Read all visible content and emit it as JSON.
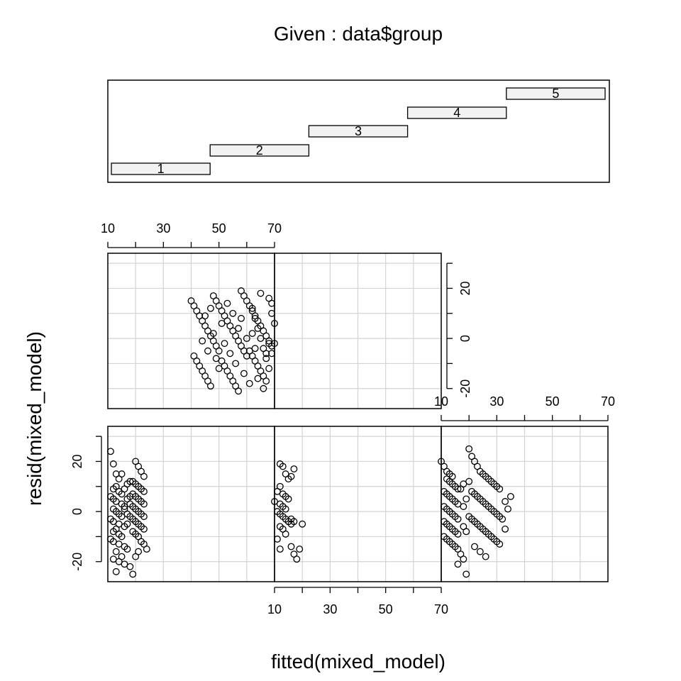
{
  "chart_data": {
    "type": "scatter",
    "title": "Given : data$group",
    "xlabel": "fitted(mixed_model)",
    "ylabel": "resid(mixed_model)",
    "x_ticks": [
      "10",
      "30",
      "50",
      "70"
    ],
    "y_ticks": [
      "-20",
      "0",
      "20"
    ],
    "xlim": [
      10,
      70
    ],
    "ylim": [
      -28,
      34
    ],
    "grid": true,
    "given": {
      "variable": "data$group",
      "levels": [
        "1",
        "2",
        "3",
        "4",
        "5"
      ],
      "range": [
        0.5,
        5.5
      ]
    },
    "panels": [
      {
        "group": "1",
        "points": [
          [
            11,
            24
          ],
          [
            12,
            19
          ],
          [
            13,
            15
          ],
          [
            14,
            13
          ],
          [
            13,
            10
          ],
          [
            12,
            9
          ],
          [
            14,
            8
          ],
          [
            15,
            7
          ],
          [
            11,
            6
          ],
          [
            12,
            5
          ],
          [
            13,
            4
          ],
          [
            15,
            3
          ],
          [
            16,
            2
          ],
          [
            12,
            1
          ],
          [
            13,
            0
          ],
          [
            14,
            -1
          ],
          [
            15,
            -2
          ],
          [
            11,
            -3
          ],
          [
            12,
            -4
          ],
          [
            14,
            -5
          ],
          [
            16,
            -6
          ],
          [
            13,
            -7
          ],
          [
            12,
            -8
          ],
          [
            14,
            -9
          ],
          [
            15,
            -10
          ],
          [
            11,
            -11
          ],
          [
            12,
            -12
          ],
          [
            14,
            -13
          ],
          [
            16,
            -14
          ],
          [
            17,
            -15
          ],
          [
            13,
            -16
          ],
          [
            15,
            -18
          ],
          [
            12,
            -19
          ],
          [
            14,
            -20
          ],
          [
            16,
            -21
          ],
          [
            18,
            -22
          ],
          [
            13,
            -24
          ],
          [
            19,
            -25
          ],
          [
            20,
            20
          ],
          [
            21,
            18
          ],
          [
            22,
            16
          ],
          [
            23,
            14
          ],
          [
            19,
            12
          ],
          [
            20,
            11
          ],
          [
            21,
            10
          ],
          [
            22,
            9
          ],
          [
            23,
            8
          ],
          [
            19,
            7
          ],
          [
            20,
            6
          ],
          [
            21,
            5
          ],
          [
            22,
            4
          ],
          [
            23,
            3
          ],
          [
            19,
            2
          ],
          [
            20,
            1
          ],
          [
            21,
            0
          ],
          [
            22,
            -1
          ],
          [
            23,
            -2
          ],
          [
            19,
            -3
          ],
          [
            20,
            -4
          ],
          [
            21,
            -5
          ],
          [
            22,
            -6
          ],
          [
            23,
            -7
          ],
          [
            19,
            -8
          ],
          [
            20,
            -9
          ],
          [
            21,
            -10
          ],
          [
            22,
            -12
          ],
          [
            23,
            -13
          ],
          [
            24,
            -15
          ],
          [
            21,
            -16
          ],
          [
            20,
            -18
          ],
          [
            18,
            3
          ],
          [
            17,
            5
          ],
          [
            18,
            -2
          ],
          [
            17,
            -5
          ],
          [
            16,
            9
          ],
          [
            17,
            11
          ],
          [
            18,
            12
          ],
          [
            15,
            15
          ],
          [
            16,
            1
          ],
          [
            17,
            -1
          ],
          [
            18,
            6
          ]
        ]
      },
      {
        "group": "2",
        "points": [
          [
            12,
            19
          ],
          [
            13,
            18
          ],
          [
            14,
            15
          ],
          [
            15,
            13
          ],
          [
            12,
            10
          ],
          [
            11,
            8
          ],
          [
            13,
            7
          ],
          [
            14,
            6
          ],
          [
            15,
            5
          ],
          [
            10,
            4
          ],
          [
            12,
            3
          ],
          [
            13,
            2
          ],
          [
            14,
            1
          ],
          [
            11,
            0
          ],
          [
            12,
            -1
          ],
          [
            13,
            -2
          ],
          [
            14,
            -3
          ],
          [
            15,
            -4
          ],
          [
            16,
            -5
          ],
          [
            12,
            -6
          ],
          [
            13,
            -7
          ],
          [
            14,
            -9
          ],
          [
            11,
            -11
          ],
          [
            16,
            -14
          ],
          [
            19,
            -15
          ],
          [
            17,
            -17
          ],
          [
            18,
            -19
          ],
          [
            20,
            -5
          ],
          [
            17,
            -4
          ],
          [
            16,
            -3
          ],
          [
            17,
            17
          ],
          [
            16,
            14
          ],
          [
            12,
            -15
          ]
        ]
      },
      {
        "group": "3",
        "points": [
          [
            10,
            20
          ],
          [
            11,
            18
          ],
          [
            12,
            16
          ],
          [
            13,
            15
          ],
          [
            14,
            14
          ],
          [
            12,
            13
          ],
          [
            13,
            12
          ],
          [
            14,
            11
          ],
          [
            15,
            10
          ],
          [
            16,
            9
          ],
          [
            11,
            8
          ],
          [
            12,
            7
          ],
          [
            13,
            6
          ],
          [
            14,
            5
          ],
          [
            15,
            4
          ],
          [
            16,
            3
          ],
          [
            11,
            2
          ],
          [
            12,
            1
          ],
          [
            13,
            0
          ],
          [
            14,
            -1
          ],
          [
            15,
            -2
          ],
          [
            16,
            -3
          ],
          [
            11,
            -4
          ],
          [
            12,
            -5
          ],
          [
            13,
            -6
          ],
          [
            14,
            -7
          ],
          [
            15,
            -8
          ],
          [
            16,
            -9
          ],
          [
            11,
            -10
          ],
          [
            12,
            -11
          ],
          [
            13,
            -12
          ],
          [
            14,
            -13
          ],
          [
            15,
            -14
          ],
          [
            16,
            -15
          ],
          [
            17,
            -17
          ],
          [
            18,
            -19
          ],
          [
            16,
            -21
          ],
          [
            19,
            -25
          ],
          [
            20,
            25
          ],
          [
            21,
            22
          ],
          [
            22,
            20
          ],
          [
            23,
            18
          ],
          [
            24,
            16
          ],
          [
            25,
            15
          ],
          [
            26,
            14
          ],
          [
            27,
            13
          ],
          [
            28,
            12
          ],
          [
            29,
            11
          ],
          [
            30,
            10
          ],
          [
            31,
            9
          ],
          [
            21,
            8
          ],
          [
            22,
            7
          ],
          [
            23,
            6
          ],
          [
            24,
            5
          ],
          [
            25,
            4
          ],
          [
            26,
            3
          ],
          [
            27,
            2
          ],
          [
            28,
            1
          ],
          [
            29,
            0
          ],
          [
            30,
            -1
          ],
          [
            31,
            -2
          ],
          [
            21,
            -3
          ],
          [
            22,
            -4
          ],
          [
            23,
            -5
          ],
          [
            24,
            -6
          ],
          [
            25,
            -7
          ],
          [
            26,
            -8
          ],
          [
            27,
            -9
          ],
          [
            28,
            -10
          ],
          [
            29,
            -11
          ],
          [
            30,
            -12
          ],
          [
            31,
            -13
          ],
          [
            22,
            -14
          ],
          [
            24,
            -16
          ],
          [
            26,
            -18
          ],
          [
            18,
            2
          ],
          [
            19,
            5
          ],
          [
            20,
            -2
          ],
          [
            18,
            -6
          ],
          [
            33,
            4
          ],
          [
            32,
            -3
          ],
          [
            34,
            1
          ],
          [
            35,
            6
          ],
          [
            33,
            -7
          ],
          [
            17,
            9
          ],
          [
            18,
            11
          ],
          [
            19,
            -8
          ],
          [
            20,
            12
          ]
        ]
      },
      {
        "group": "5",
        "points": [
          [
            40,
            15
          ],
          [
            41,
            13
          ],
          [
            42,
            11
          ],
          [
            43,
            9
          ],
          [
            44,
            7
          ],
          [
            45,
            5
          ],
          [
            46,
            3
          ],
          [
            47,
            1
          ],
          [
            48,
            -1
          ],
          [
            49,
            -3
          ],
          [
            50,
            -5
          ],
          [
            41,
            -7
          ],
          [
            42,
            -9
          ],
          [
            43,
            -11
          ],
          [
            44,
            -13
          ],
          [
            45,
            -15
          ],
          [
            46,
            -17
          ],
          [
            47,
            -19
          ],
          [
            48,
            17
          ],
          [
            49,
            15
          ],
          [
            50,
            13
          ],
          [
            51,
            11
          ],
          [
            52,
            9
          ],
          [
            53,
            7
          ],
          [
            54,
            5
          ],
          [
            55,
            3
          ],
          [
            56,
            1
          ],
          [
            57,
            -1
          ],
          [
            58,
            -3
          ],
          [
            59,
            -5
          ],
          [
            60,
            -7
          ],
          [
            51,
            -9
          ],
          [
            52,
            -11
          ],
          [
            53,
            -13
          ],
          [
            54,
            -15
          ],
          [
            55,
            -17
          ],
          [
            56,
            -19
          ],
          [
            57,
            -21
          ],
          [
            58,
            19
          ],
          [
            59,
            17
          ],
          [
            60,
            15
          ],
          [
            61,
            13
          ],
          [
            62,
            11
          ],
          [
            63,
            9
          ],
          [
            64,
            7
          ],
          [
            65,
            5
          ],
          [
            66,
            3
          ],
          [
            67,
            1
          ],
          [
            68,
            -1
          ],
          [
            69,
            -3
          ],
          [
            61,
            -5
          ],
          [
            62,
            -7
          ],
          [
            63,
            -9
          ],
          [
            64,
            -11
          ],
          [
            65,
            -13
          ],
          [
            66,
            -15
          ],
          [
            67,
            -17
          ],
          [
            68,
            16
          ],
          [
            69,
            14
          ],
          [
            62,
            12
          ],
          [
            63,
            8
          ],
          [
            64,
            4
          ],
          [
            65,
            0
          ],
          [
            66,
            -4
          ],
          [
            67,
            -8
          ],
          [
            68,
            -12
          ],
          [
            69,
            -6
          ],
          [
            70,
            -2
          ],
          [
            70,
            6
          ],
          [
            44,
            -1
          ],
          [
            45,
            9
          ],
          [
            46,
            -5
          ],
          [
            47,
            12
          ],
          [
            48,
            2
          ],
          [
            49,
            -8
          ],
          [
            50,
            -12
          ],
          [
            51,
            6
          ],
          [
            52,
            -2
          ],
          [
            53,
            14
          ],
          [
            54,
            -6
          ],
          [
            55,
            10
          ],
          [
            56,
            -10
          ],
          [
            57,
            4
          ],
          [
            58,
            8
          ],
          [
            59,
            -14
          ],
          [
            60,
            0
          ],
          [
            61,
            -18
          ],
          [
            62,
            2
          ],
          [
            63,
            -4
          ],
          [
            64,
            -16
          ],
          [
            65,
            18
          ],
          [
            66,
            -20
          ],
          [
            67,
            -6
          ],
          [
            68,
            -2
          ],
          [
            69,
            10
          ]
        ]
      }
    ]
  }
}
